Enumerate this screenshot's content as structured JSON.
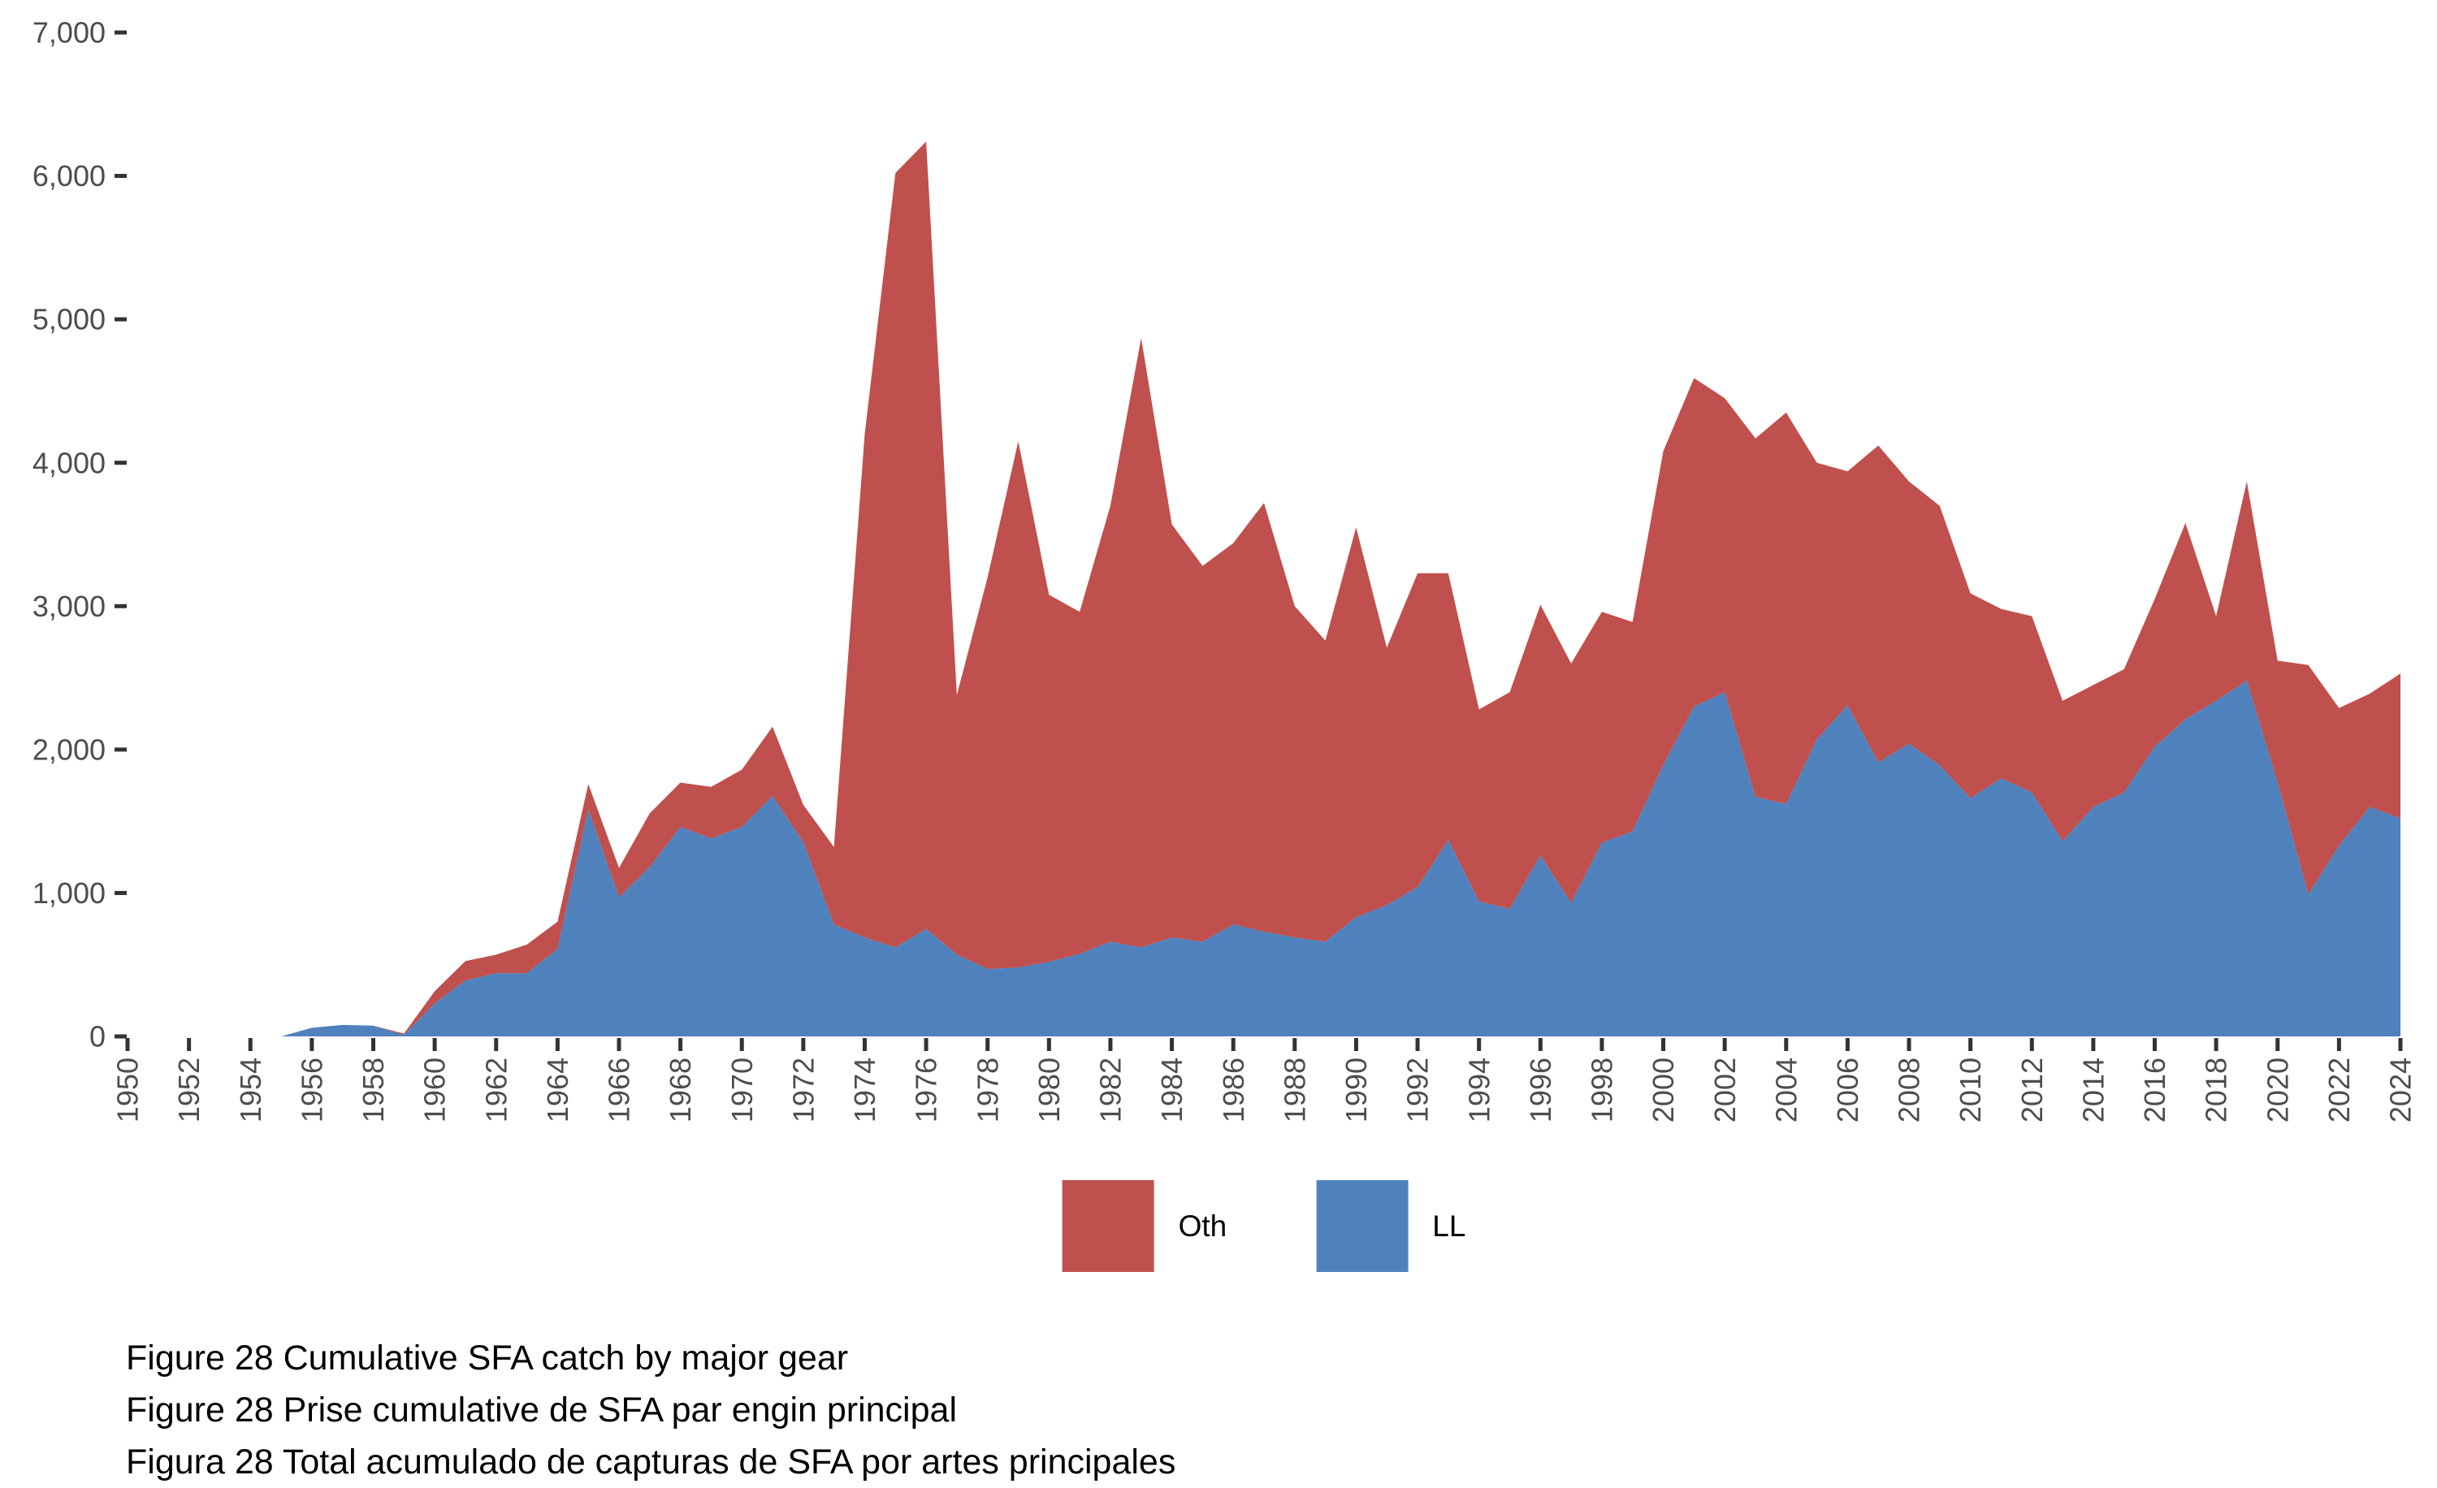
{
  "figure": {
    "captions": [
      "Figure 28 Cumulative SFA catch by major gear",
      "Figure 28 Prise cumulative de SFA par engin principal",
      "Figura 28 Total acumulado de capturas de SFA por artes principales"
    ]
  },
  "legend": {
    "items": [
      {
        "id": "oth",
        "label": "Oth"
      },
      {
        "id": "ll",
        "label": "LL"
      }
    ]
  },
  "colors": {
    "oth": "#C0504D",
    "ll": "#4F81BD",
    "tick_mark": "#333333",
    "tick_label": "#4d4d4d"
  },
  "chart_data": {
    "type": "area",
    "stacked": true,
    "title": "",
    "xlabel": "",
    "ylabel": "",
    "grid": false,
    "legend_position": "bottom",
    "ylim": [
      0,
      7000
    ],
    "xlim": [
      1950,
      2024
    ],
    "x": [
      1950,
      1951,
      1952,
      1953,
      1954,
      1955,
      1956,
      1957,
      1958,
      1959,
      1960,
      1961,
      1962,
      1963,
      1964,
      1965,
      1966,
      1967,
      1968,
      1969,
      1970,
      1971,
      1972,
      1973,
      1974,
      1975,
      1976,
      1977,
      1978,
      1979,
      1980,
      1981,
      1982,
      1983,
      1984,
      1985,
      1986,
      1987,
      1988,
      1989,
      1990,
      1991,
      1992,
      1993,
      1994,
      1995,
      1996,
      1997,
      1998,
      1999,
      2000,
      2001,
      2002,
      2003,
      2004,
      2005,
      2006,
      2007,
      2008,
      2009,
      2010,
      2011,
      2012,
      2013,
      2014,
      2015,
      2016,
      2017,
      2018,
      2019,
      2020,
      2021,
      2022,
      2023,
      2024
    ],
    "stack_order": [
      "LL",
      "Oth"
    ],
    "series": [
      {
        "name": "LL",
        "values": [
          0,
          0,
          0,
          0,
          0,
          0,
          60,
          80,
          75,
          10,
          230,
          390,
          440,
          440,
          610,
          1580,
          970,
          1180,
          1460,
          1380,
          1460,
          1675,
          1355,
          780,
          690,
          620,
          750,
          570,
          470,
          480,
          520,
          575,
          660,
          620,
          690,
          660,
          780,
          730,
          690,
          660,
          830,
          915,
          1040,
          1370,
          940,
          890,
          1260,
          930,
          1350,
          1430,
          1890,
          2300,
          2400,
          1670,
          1620,
          2070,
          2310,
          1910,
          2040,
          1890,
          1660,
          1800,
          1700,
          1360,
          1600,
          1700,
          2020,
          2210,
          2340,
          2480,
          1770,
          990,
          1330,
          1600,
          1520
        ]
      },
      {
        "name": "Oth",
        "values": [
          0,
          0,
          0,
          0,
          0,
          0,
          0,
          0,
          0,
          10,
          85,
          135,
          130,
          200,
          190,
          180,
          205,
          375,
          310,
          360,
          400,
          485,
          260,
          540,
          3510,
          5400,
          5490,
          1810,
          2730,
          3670,
          2560,
          2385,
          3040,
          4250,
          2880,
          2620,
          2660,
          2990,
          2310,
          2100,
          2720,
          1795,
          2190,
          1860,
          1340,
          1510,
          1750,
          1670,
          1610,
          1460,
          2190,
          2290,
          2050,
          2500,
          2730,
          1930,
          1630,
          2210,
          1830,
          1810,
          1430,
          1180,
          1230,
          980,
          850,
          860,
          1030,
          1370,
          590,
          1390,
          850,
          1600,
          960,
          790,
          1010
        ]
      }
    ],
    "y_axis": {
      "ticks": [
        {
          "value": 0,
          "label": "0"
        },
        {
          "value": 1000,
          "label": "1,000"
        },
        {
          "value": 2000,
          "label": "2,000"
        },
        {
          "value": 3000,
          "label": "3,000"
        },
        {
          "value": 4000,
          "label": "4,000"
        },
        {
          "value": 5000,
          "label": "5,000"
        },
        {
          "value": 6000,
          "label": "6,000"
        },
        {
          "value": 7000,
          "label": "7,000"
        }
      ]
    },
    "x_axis": {
      "tick_labels": [
        "1950",
        "1952",
        "1954",
        "1956",
        "1958",
        "1960",
        "1962",
        "1964",
        "1966",
        "1968",
        "1970",
        "1972",
        "1974",
        "1976",
        "1978",
        "1980",
        "1982",
        "1984",
        "1986",
        "1988",
        "1990",
        "1992",
        "1994",
        "1996",
        "1998",
        "2000",
        "2002",
        "2004",
        "2006",
        "2008",
        "2010",
        "2012",
        "2014",
        "2016",
        "2018",
        "2020",
        "2022",
        "2024"
      ]
    }
  }
}
